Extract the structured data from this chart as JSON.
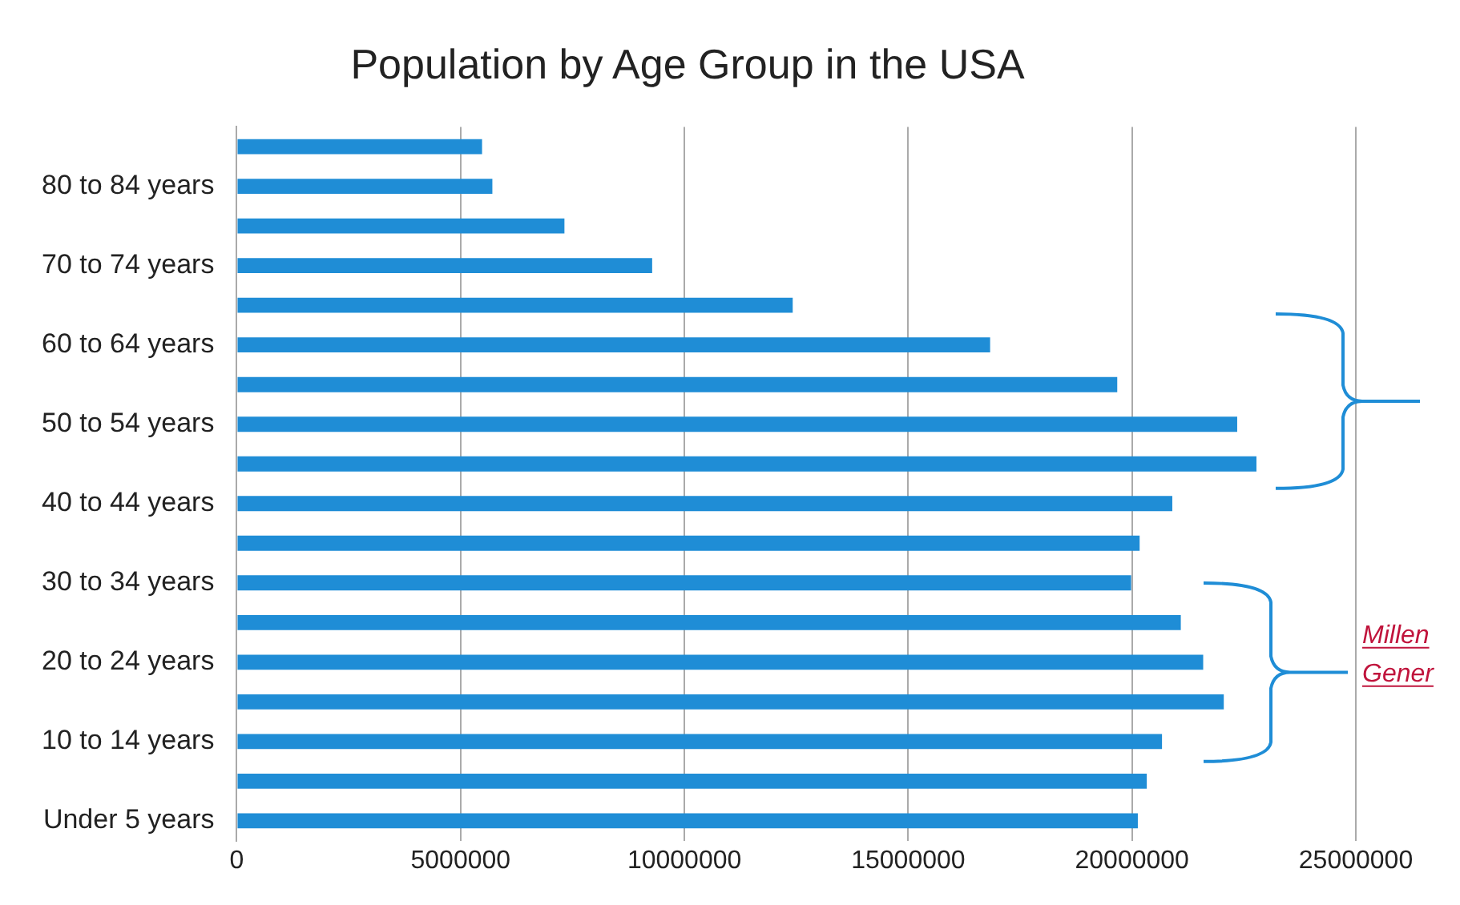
{
  "chart_data": {
    "type": "bar",
    "orientation": "horizontal",
    "title": "Population by Age Group in the USA",
    "categories": [
      null,
      "80 to 84 years",
      null,
      "70 to 74 years",
      null,
      "60 to 64 years",
      null,
      "50 to 54 years",
      null,
      "40 to 44 years",
      null,
      "30 to 34 years",
      null,
      "20 to 24 years",
      null,
      "10 to 14 years",
      null,
      "Under 5 years"
    ],
    "values": [
      5480000,
      5710000,
      7320000,
      9280000,
      12420000,
      16830000,
      19670000,
      22350000,
      22780000,
      20900000,
      20170000,
      19980000,
      21090000,
      21590000,
      22050000,
      20670000,
      20330000,
      20130000
    ],
    "color": "#1f8dd6",
    "xlim": [
      0,
      25000000
    ],
    "xticks": [
      0,
      5000000,
      10000000,
      15000000,
      20000000,
      25000000
    ],
    "grid": "x",
    "legend": false,
    "annotations": [
      "Millen",
      "Gener"
    ]
  }
}
